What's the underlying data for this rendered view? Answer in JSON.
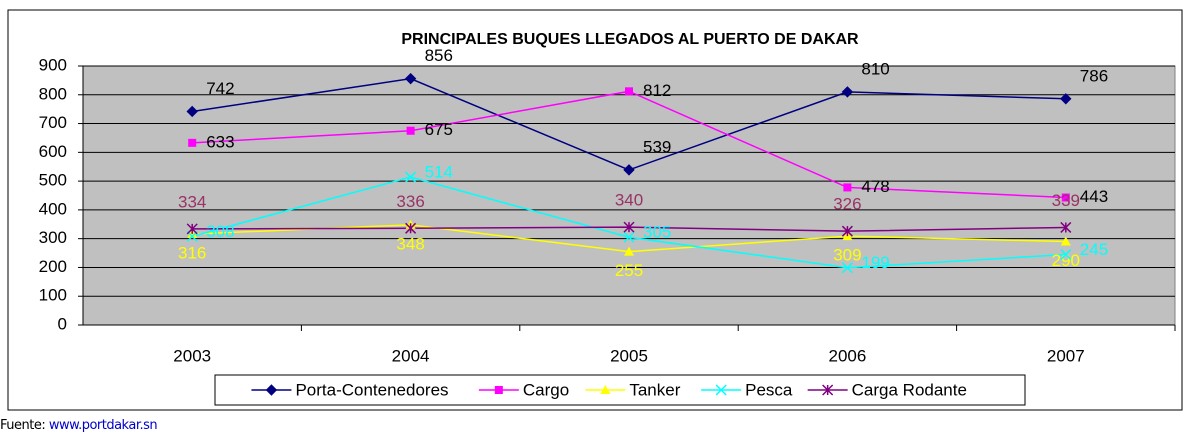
{
  "chart_data": {
    "type": "line",
    "title": "PRINCIPALES BUQUES LLEGADOS AL PUERTO DE DAKAR",
    "categories": [
      "2003",
      "2004",
      "2005",
      "2006",
      "2007"
    ],
    "series": [
      {
        "name": "Porta-Contenedores",
        "color": "#000080",
        "label_color": "#000000",
        "marker": "diamond",
        "values": [
          742,
          856,
          539,
          810,
          786
        ]
      },
      {
        "name": "Cargo",
        "color": "#ff00ff",
        "label_color": "#000000",
        "marker": "square",
        "values": [
          633,
          675,
          812,
          478,
          443
        ]
      },
      {
        "name": "Tanker",
        "color": "#ffff00",
        "label_color": "#ffff00",
        "marker": "triangle",
        "values": [
          316,
          348,
          255,
          309,
          290
        ]
      },
      {
        "name": "Pesca",
        "color": "#00ffff",
        "label_color": "#00ffff",
        "marker": "x",
        "values": [
          308,
          514,
          305,
          199,
          245
        ]
      },
      {
        "name": "Carga Rodante",
        "color": "#800080",
        "label_color": "#993366",
        "marker": "star",
        "values": [
          334,
          336,
          340,
          326,
          339
        ]
      }
    ],
    "ylim": [
      0,
      900
    ],
    "yticks": [
      0,
      100,
      200,
      300,
      400,
      500,
      600,
      700,
      800,
      900
    ],
    "grid": true,
    "legend": "bottom",
    "plot_background": "#c0c0c0"
  },
  "footer": {
    "label": "Fuente:",
    "link": "www.portdakar.sn"
  }
}
